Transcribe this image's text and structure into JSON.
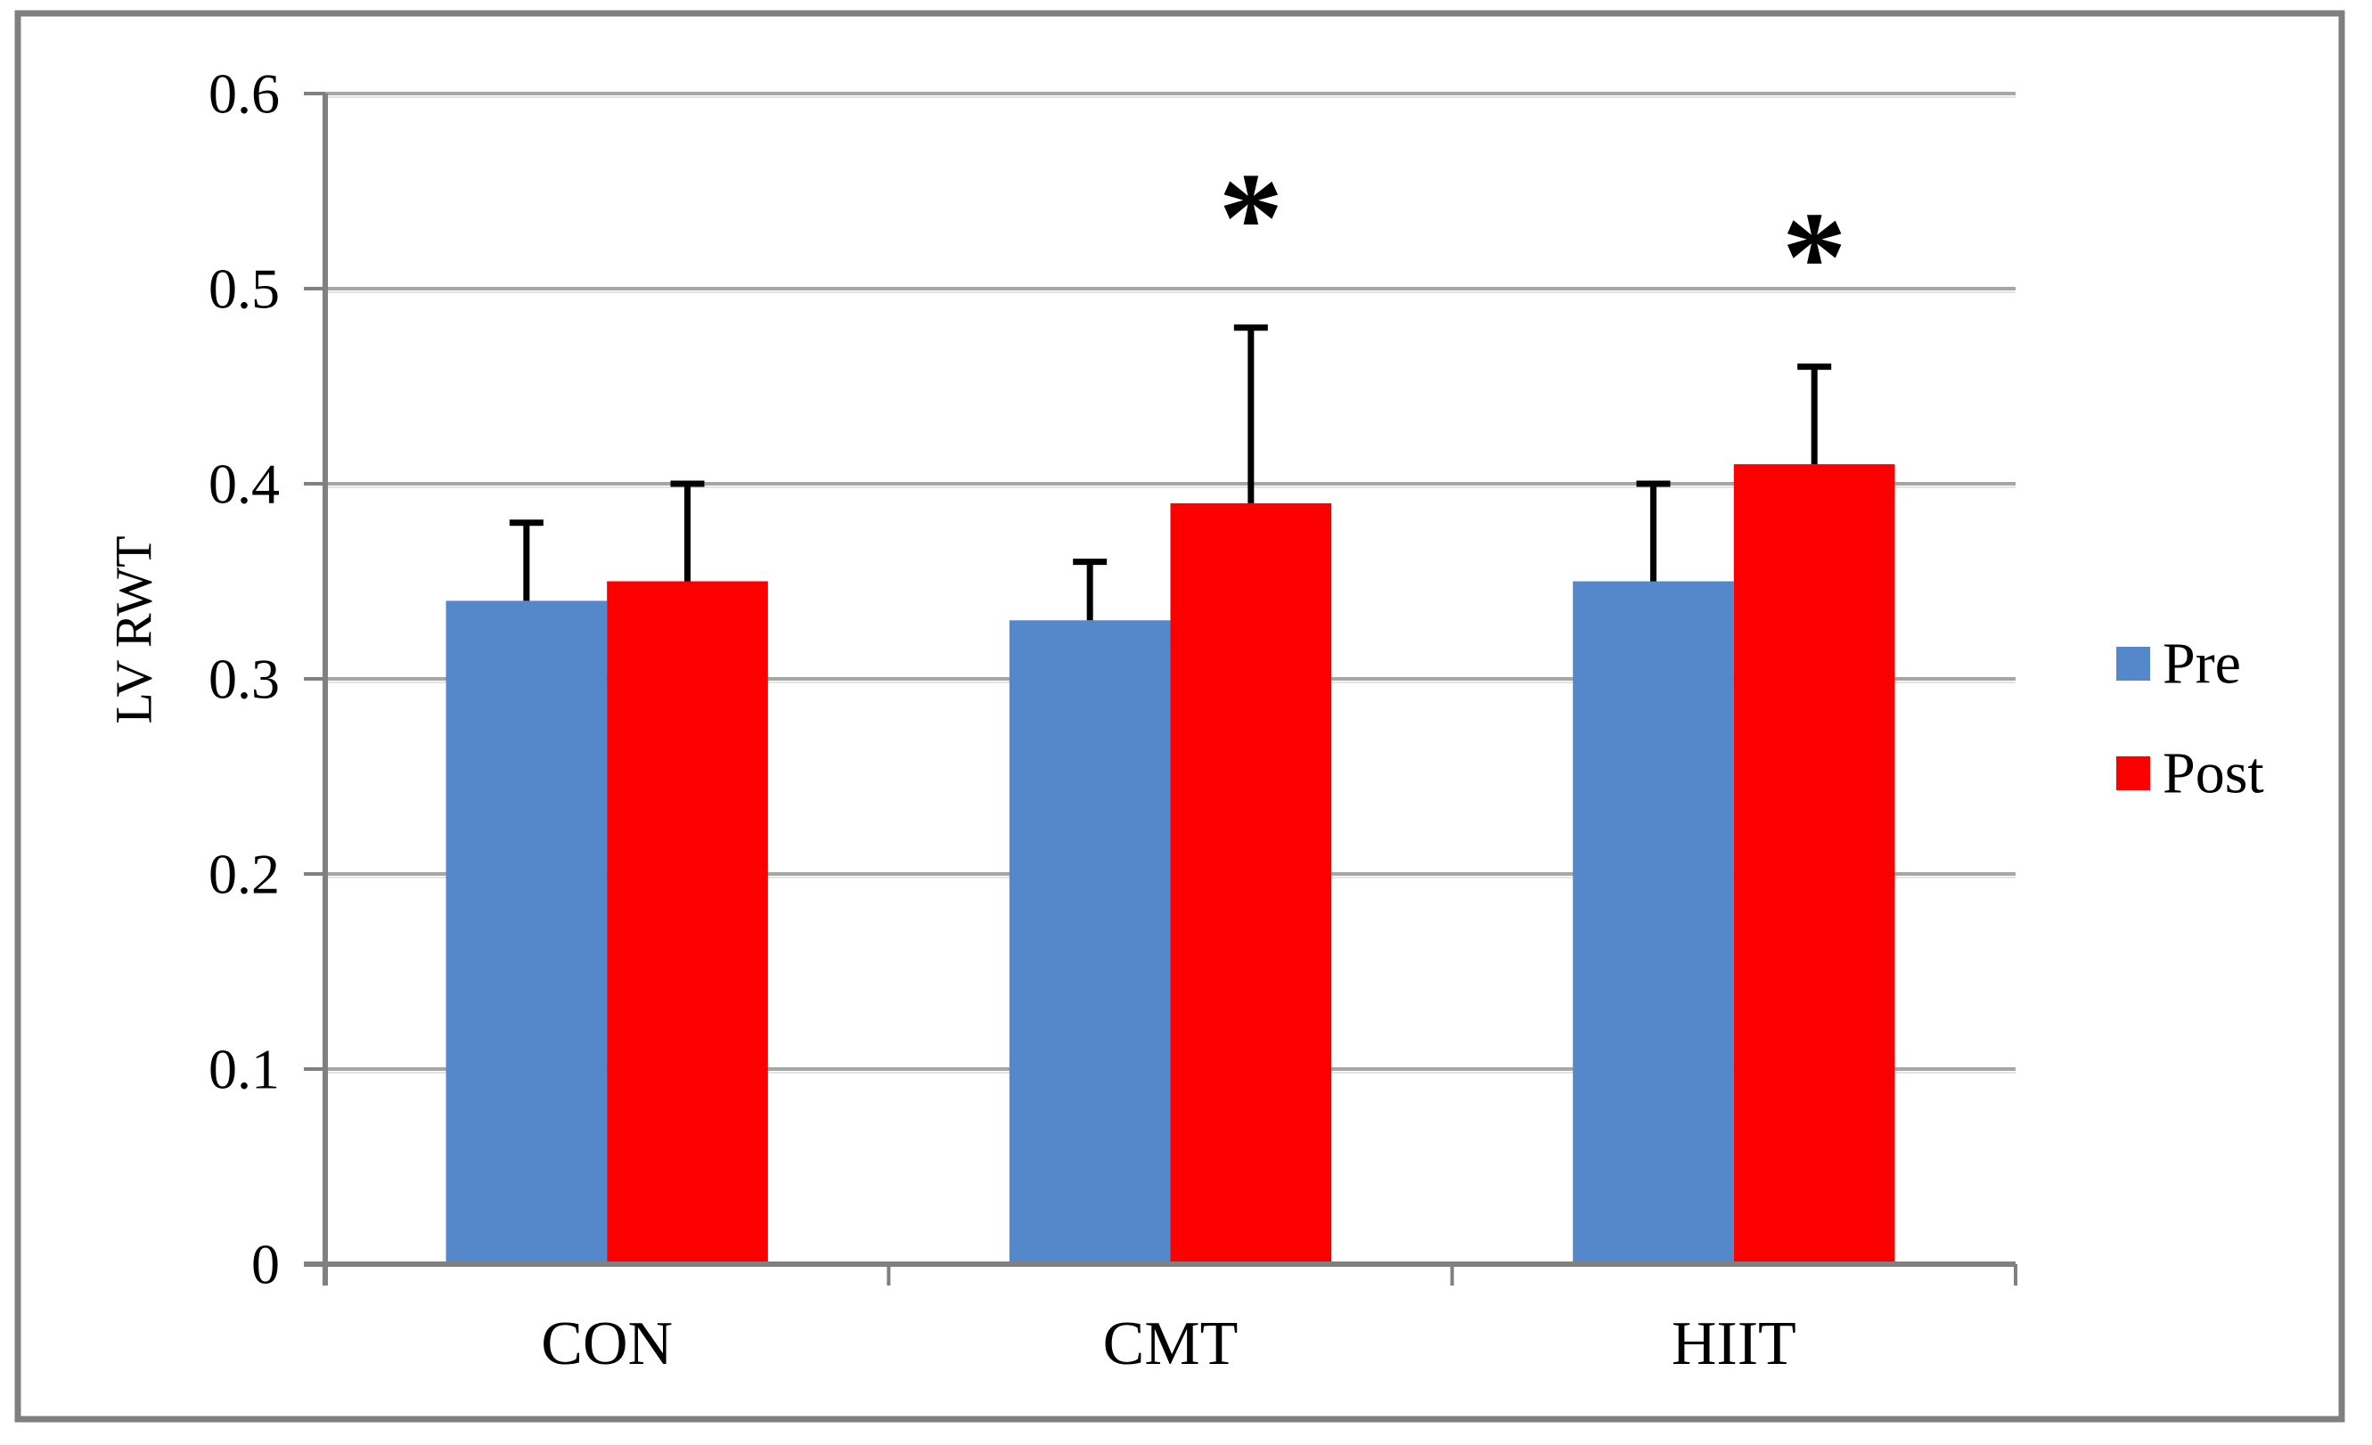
{
  "figure": {
    "border_color": "#7f7f7f",
    "background_color": "#ffffff"
  },
  "chart_data": {
    "type": "bar",
    "title": "",
    "xlabel": "",
    "ylabel": "LV RWT",
    "categories": [
      "CON",
      "CMT",
      "HIIT"
    ],
    "series": [
      {
        "name": "Pre",
        "color": "#5588CB",
        "values": [
          0.34,
          0.33,
          0.35
        ],
        "errors_plus": [
          0.04,
          0.03,
          0.05
        ]
      },
      {
        "name": "Post",
        "color": "#FC0000",
        "values": [
          0.35,
          0.39,
          0.41
        ],
        "errors_plus": [
          0.05,
          0.09,
          0.05
        ]
      }
    ],
    "ylim": [
      0,
      0.6
    ],
    "ytick_step": 0.1,
    "ytick_labels": [
      "0",
      "0.1",
      "0.2",
      "0.3",
      "0.4",
      "0.5",
      "0.6"
    ],
    "grid": true,
    "gridline_color": "#A6A6A6",
    "axis_color": "#808080",
    "error_bar_color": "#000000",
    "legend_position": "right",
    "significance_markers": [
      {
        "category": "CMT",
        "series": "Post",
        "symbol": "*"
      },
      {
        "category": "HIIT",
        "series": "Post",
        "symbol": "*"
      }
    ]
  },
  "legend": {
    "items": [
      {
        "label": "Pre",
        "color": "#5588CB"
      },
      {
        "label": "Post",
        "color": "#FC0000"
      }
    ]
  }
}
